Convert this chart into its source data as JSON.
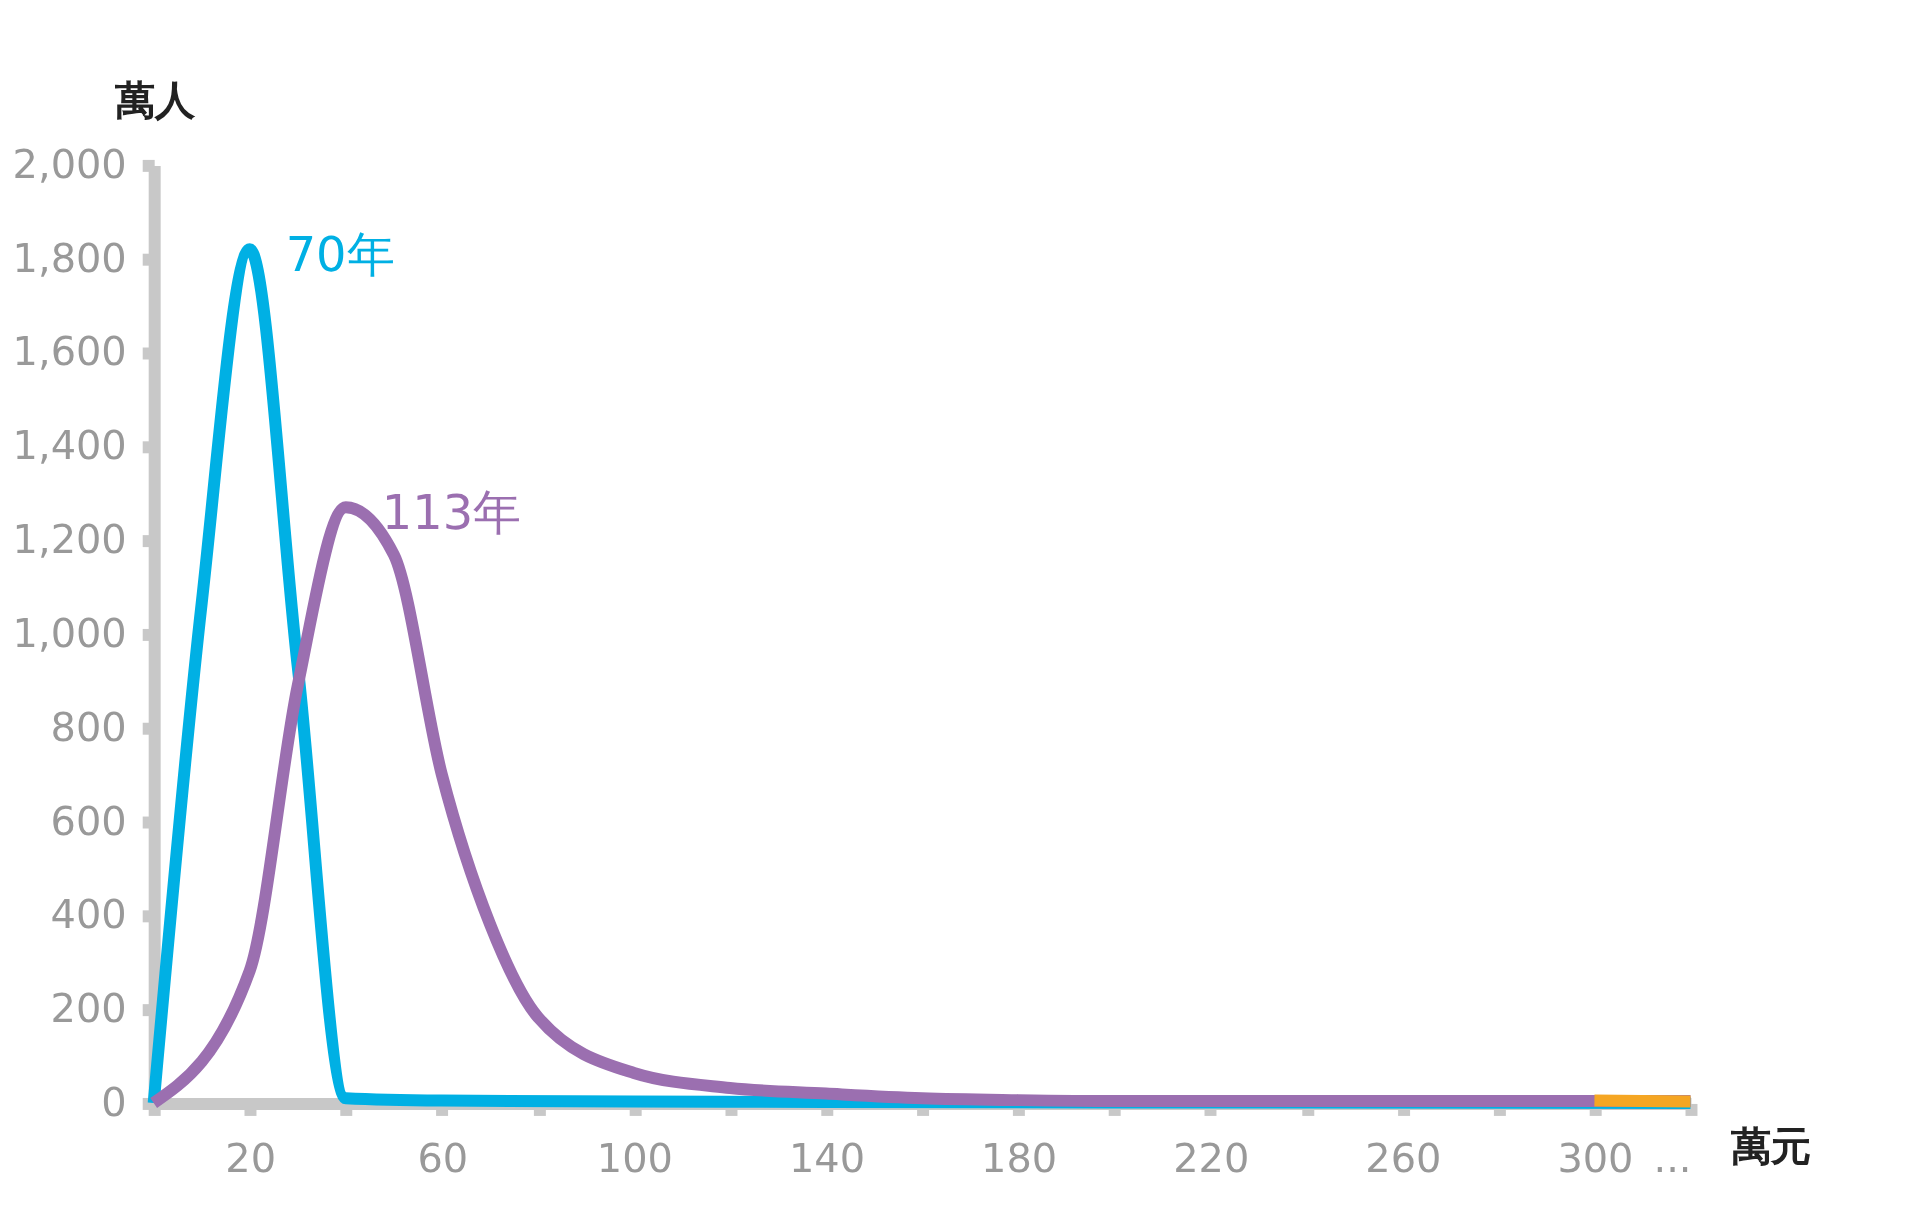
{
  "chart_data": {
    "type": "line",
    "xlabel": "萬元",
    "ylabel": "萬人",
    "series": [
      {
        "name": "70年",
        "color": "#00b0e4",
        "x": [
          0,
          10,
          20,
          30,
          40,
          60,
          100,
          140,
          200,
          320
        ],
        "values": [
          0,
          1066,
          1820,
          930,
          10,
          5,
          3,
          2,
          1,
          0
        ]
      },
      {
        "name": "113年",
        "color": "#9b6fb0",
        "x": [
          0,
          20,
          30,
          40,
          50,
          60,
          70,
          80,
          100,
          120,
          140,
          160,
          180,
          200,
          320
        ],
        "values": [
          0,
          282,
          890,
          1270,
          1169,
          700,
          382,
          183,
          64,
          32,
          20,
          10,
          6,
          4,
          4
        ]
      },
      {
        "color": "#f5a623",
        "x": [
          300,
          320
        ],
        "values": [
          5,
          3
        ]
      }
    ],
    "xlim": [
      0,
      320
    ],
    "xticks": [
      {
        "value": 0,
        "label": null
      },
      20,
      {
        "value": 40,
        "label": null
      },
      60,
      {
        "value": 80,
        "label": null
      },
      100,
      {
        "value": 120,
        "label": null
      },
      140,
      {
        "value": 160,
        "label": null
      },
      180,
      {
        "value": 200,
        "label": null
      },
      220,
      {
        "value": 240,
        "label": null
      },
      260,
      {
        "value": 280,
        "label": null
      },
      300,
      {
        "value": 320,
        "label": "..."
      }
    ],
    "ylim": [
      0,
      2000
    ],
    "yticks": [
      0,
      200,
      400,
      600,
      800,
      {
        "value": 1000,
        "label": "1,000"
      },
      {
        "value": 1200,
        "label": "1,200"
      },
      {
        "value": 1400,
        "label": "1,400"
      },
      {
        "value": 1600,
        "label": "1,600"
      },
      {
        "value": 1800,
        "label": "1,800"
      },
      {
        "value": 2000,
        "label": "2,000"
      }
    ],
    "grid": false,
    "marker": "none",
    "line_style": "solid"
  }
}
